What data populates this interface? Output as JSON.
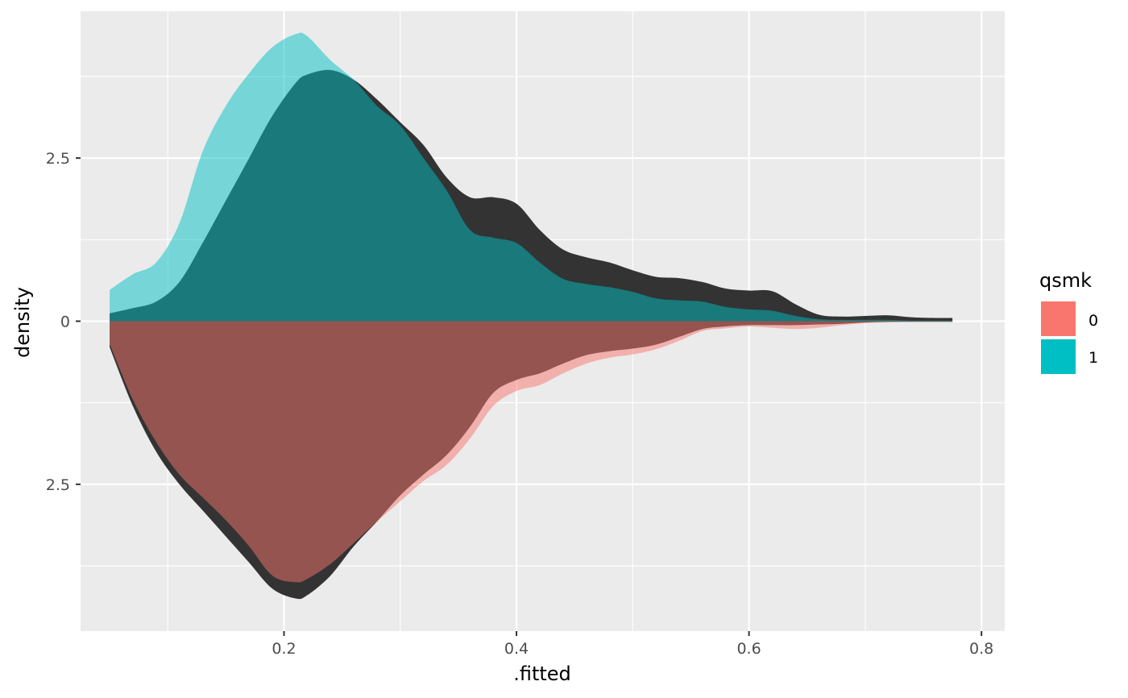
{
  "chart_data": {
    "type": "area",
    "subtype": "mirrored density",
    "title": "",
    "xlabel": ".fitted",
    "ylabel": "density",
    "xlim": [
      0.025,
      0.82
    ],
    "ylim": [
      -4.75,
      4.75
    ],
    "x_ticks": [
      0.2,
      0.4,
      0.6,
      0.8
    ],
    "x_tick_labels": [
      "0.2",
      "0.4",
      "0.6",
      "0.8"
    ],
    "y_ticks": [
      -2.5,
      0,
      2.5
    ],
    "y_tick_labels": [
      "2.5",
      "0",
      "2.5"
    ],
    "grid": true,
    "legend": {
      "title": "qsmk",
      "position": "right",
      "entries": [
        {
          "label": "0",
          "color": "#F8766D"
        },
        {
          "label": "1",
          "color": "#00BFC4"
        }
      ]
    },
    "series": [
      {
        "name": "1",
        "role": "upper unweighted",
        "color": "#00BFC4",
        "opacity": 0.5,
        "x": [
          0.05,
          0.07,
          0.09,
          0.11,
          0.13,
          0.15,
          0.17,
          0.19,
          0.21,
          0.22,
          0.24,
          0.26,
          0.28,
          0.3,
          0.32,
          0.34,
          0.36,
          0.38,
          0.4,
          0.42,
          0.44,
          0.46,
          0.48,
          0.5,
          0.52,
          0.54,
          0.56,
          0.58,
          0.6,
          0.62,
          0.64,
          0.66,
          0.68,
          0.7,
          0.72,
          0.74,
          0.76,
          0.775
        ],
        "y": [
          0.48,
          0.72,
          0.9,
          1.5,
          2.6,
          3.3,
          3.8,
          4.2,
          4.4,
          4.37,
          4.0,
          3.7,
          3.3,
          3.0,
          2.5,
          2.0,
          1.4,
          1.28,
          1.2,
          0.9,
          0.65,
          0.57,
          0.52,
          0.45,
          0.35,
          0.32,
          0.3,
          0.22,
          0.18,
          0.16,
          0.08,
          0.03,
          0.02,
          0.02,
          0.02,
          0.01,
          0.01,
          0.01
        ]
      },
      {
        "name": "1 (weighted)",
        "role": "upper weighted",
        "color": "#333333",
        "opacity": 1,
        "x": [
          0.05,
          0.07,
          0.09,
          0.11,
          0.13,
          0.15,
          0.17,
          0.19,
          0.21,
          0.22,
          0.24,
          0.26,
          0.28,
          0.3,
          0.32,
          0.34,
          0.36,
          0.38,
          0.4,
          0.42,
          0.44,
          0.46,
          0.48,
          0.5,
          0.52,
          0.54,
          0.56,
          0.58,
          0.6,
          0.62,
          0.64,
          0.66,
          0.68,
          0.7,
          0.72,
          0.74,
          0.76,
          0.775
        ],
        "y": [
          0.12,
          0.2,
          0.3,
          0.6,
          1.2,
          1.85,
          2.5,
          3.15,
          3.65,
          3.78,
          3.85,
          3.7,
          3.4,
          3.05,
          2.7,
          2.2,
          1.9,
          1.9,
          1.8,
          1.4,
          1.1,
          0.98,
          0.9,
          0.78,
          0.68,
          0.66,
          0.6,
          0.5,
          0.47,
          0.46,
          0.26,
          0.1,
          0.07,
          0.08,
          0.09,
          0.06,
          0.05,
          0.05
        ]
      },
      {
        "name": "0",
        "role": "lower unweighted",
        "color": "#F8766D",
        "opacity": 0.5,
        "x": [
          0.05,
          0.07,
          0.09,
          0.11,
          0.13,
          0.15,
          0.17,
          0.19,
          0.21,
          0.22,
          0.24,
          0.26,
          0.28,
          0.3,
          0.32,
          0.34,
          0.36,
          0.38,
          0.4,
          0.42,
          0.44,
          0.46,
          0.48,
          0.5,
          0.52,
          0.54,
          0.56,
          0.58,
          0.6,
          0.62,
          0.64,
          0.66,
          0.68,
          0.7,
          0.72,
          0.74,
          0.76,
          0.775
        ],
        "y": [
          0.35,
          1.2,
          1.85,
          2.35,
          2.7,
          3.05,
          3.45,
          3.9,
          4.0,
          3.95,
          3.72,
          3.4,
          3.07,
          2.76,
          2.45,
          2.2,
          1.8,
          1.3,
          1.07,
          0.98,
          0.8,
          0.65,
          0.56,
          0.51,
          0.43,
          0.3,
          0.15,
          0.11,
          0.08,
          0.1,
          0.12,
          0.1,
          0.06,
          0.03,
          0.02,
          0.01,
          0.01,
          0.01
        ]
      },
      {
        "name": "0 (weighted)",
        "role": "lower weighted",
        "color": "#333333",
        "opacity": 1,
        "x": [
          0.05,
          0.07,
          0.09,
          0.11,
          0.13,
          0.15,
          0.17,
          0.19,
          0.21,
          0.22,
          0.24,
          0.26,
          0.28,
          0.3,
          0.32,
          0.34,
          0.36,
          0.38,
          0.4,
          0.42,
          0.44,
          0.46,
          0.48,
          0.5,
          0.52,
          0.54,
          0.56,
          0.58,
          0.6,
          0.62,
          0.64,
          0.66,
          0.68,
          0.7,
          0.72,
          0.74,
          0.76,
          0.775
        ],
        "y": [
          0.4,
          1.3,
          2.0,
          2.5,
          2.9,
          3.3,
          3.7,
          4.1,
          4.25,
          4.2,
          3.9,
          3.45,
          3.07,
          2.67,
          2.35,
          2.05,
          1.62,
          1.1,
          0.9,
          0.8,
          0.65,
          0.52,
          0.46,
          0.42,
          0.36,
          0.24,
          0.12,
          0.08,
          0.06,
          0.06,
          0.06,
          0.05,
          0.04,
          0.02,
          0.01,
          0.01,
          0.01,
          0.01
        ]
      }
    ]
  }
}
